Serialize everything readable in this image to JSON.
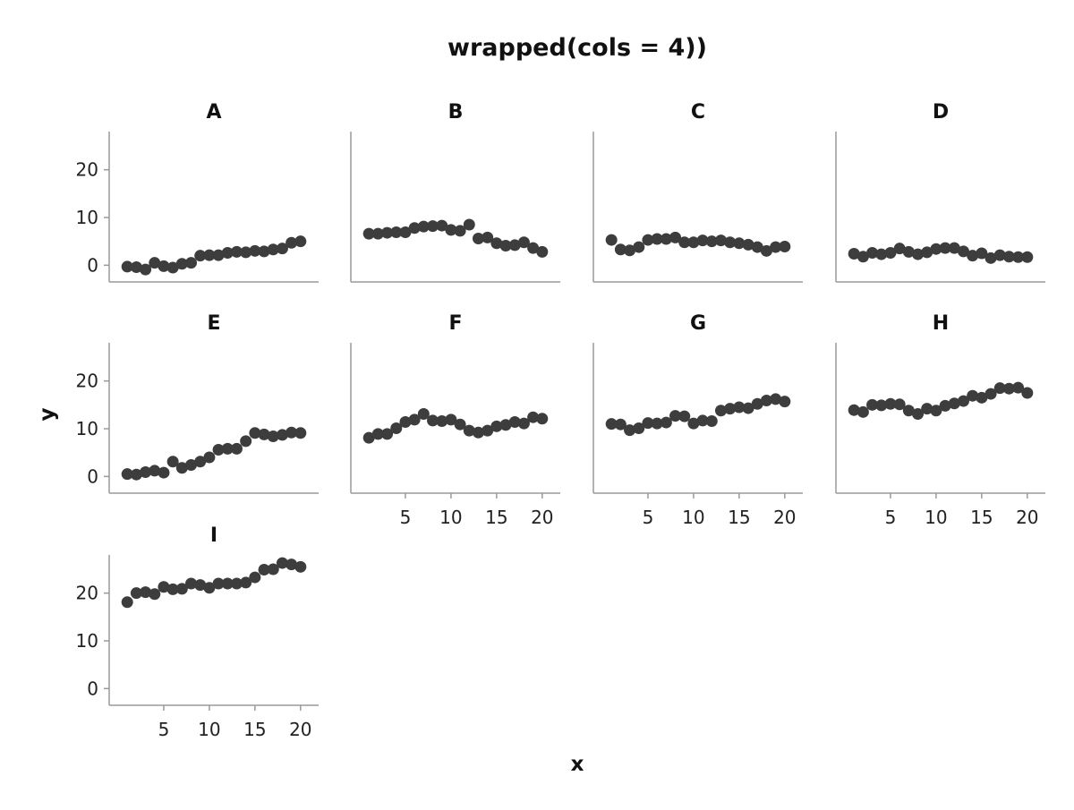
{
  "chart_data": {
    "type": "scatter",
    "title": "wrapped(cols = 4))",
    "xlabel": "x",
    "ylabel": "y",
    "layout": "facet-wrap",
    "cols": 4,
    "xlim": [
      0,
      21
    ],
    "ylim": [
      -2,
      28
    ],
    "xticks": [
      5,
      10,
      15,
      20
    ],
    "yticks": [
      0,
      10,
      20
    ],
    "point_color": "#3d3d3d",
    "x": [
      1,
      2,
      3,
      4,
      5,
      6,
      7,
      8,
      9,
      10,
      11,
      12,
      13,
      14,
      15,
      16,
      17,
      18,
      19,
      20
    ],
    "panels": [
      {
        "name": "A",
        "values": [
          -0.3,
          -0.4,
          -0.9,
          0.5,
          -0.2,
          -0.5,
          0.3,
          0.5,
          2.0,
          2.1,
          2.1,
          2.6,
          2.8,
          2.7,
          3.0,
          2.9,
          3.3,
          3.5,
          4.7,
          5.0
        ]
      },
      {
        "name": "B",
        "values": [
          6.6,
          6.6,
          6.8,
          6.9,
          6.9,
          7.8,
          8.1,
          8.2,
          8.3,
          7.4,
          7.2,
          8.5,
          5.6,
          5.8,
          4.6,
          4.1,
          4.2,
          4.8,
          3.6,
          2.8
        ]
      },
      {
        "name": "C",
        "values": [
          5.3,
          3.3,
          3.1,
          3.8,
          5.3,
          5.5,
          5.5,
          5.8,
          4.8,
          4.8,
          5.2,
          5.0,
          5.2,
          4.8,
          4.6,
          4.3,
          3.8,
          3.0,
          3.8,
          3.9
        ]
      },
      {
        "name": "D",
        "values": [
          2.4,
          1.8,
          2.6,
          2.3,
          2.6,
          3.5,
          2.8,
          2.3,
          2.7,
          3.4,
          3.6,
          3.6,
          2.9,
          2.0,
          2.5,
          1.5,
          2.1,
          1.8,
          1.7,
          1.7
        ]
      },
      {
        "name": "E",
        "values": [
          0.5,
          0.4,
          0.9,
          1.2,
          0.8,
          3.1,
          1.8,
          2.4,
          3.1,
          4.0,
          5.6,
          5.8,
          5.8,
          7.4,
          9.1,
          8.8,
          8.4,
          8.7,
          9.2,
          9.1
        ]
      },
      {
        "name": "F",
        "values": [
          8.1,
          8.9,
          8.9,
          10.1,
          11.4,
          11.9,
          13.1,
          11.7,
          11.6,
          11.9,
          10.9,
          9.6,
          9.2,
          9.6,
          10.5,
          10.8,
          11.4,
          11.1,
          12.4,
          12.1
        ]
      },
      {
        "name": "G",
        "values": [
          11.0,
          10.9,
          9.7,
          10.1,
          11.2,
          11.1,
          11.3,
          12.7,
          12.6,
          11.1,
          11.7,
          11.6,
          13.8,
          14.2,
          14.5,
          14.3,
          15.2,
          15.9,
          16.2,
          15.7
        ]
      },
      {
        "name": "H",
        "values": [
          13.9,
          13.5,
          15.0,
          14.9,
          15.2,
          15.1,
          13.8,
          13.1,
          14.2,
          13.8,
          14.8,
          15.3,
          15.8,
          16.9,
          16.5,
          17.3,
          18.5,
          18.4,
          18.6,
          17.5
        ]
      },
      {
        "name": "I",
        "values": [
          18.1,
          20.0,
          20.2,
          19.8,
          21.3,
          20.8,
          20.9,
          22.0,
          21.7,
          21.1,
          22.0,
          22.0,
          22.0,
          22.2,
          23.3,
          24.9,
          25.0,
          26.3,
          26.0,
          25.5
        ]
      }
    ]
  }
}
